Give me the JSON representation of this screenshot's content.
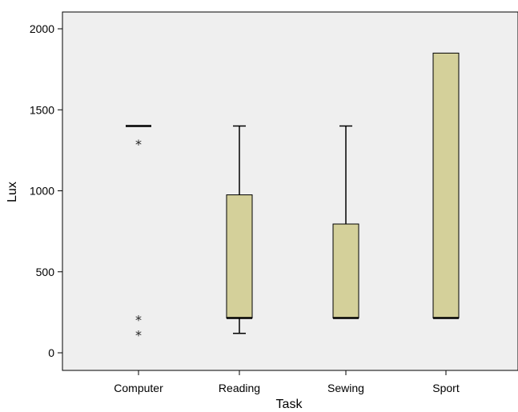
{
  "chart_data": {
    "type": "boxplot",
    "xlabel": "Task",
    "ylabel": "Lux",
    "categories": [
      "Computer",
      "Reading",
      "Sewing",
      "Sport"
    ],
    "ylim": [
      -100,
      2100
    ],
    "yticks": [
      0,
      500,
      1000,
      1500,
      2000
    ],
    "grid": false,
    "box_color": "#d4d09a",
    "plot_background": "#efefef",
    "boxes": [
      {
        "category": "Computer",
        "whisker_low": 1400,
        "q1": 1400,
        "median": 1400,
        "q3": 1400,
        "whisker_high": 1400,
        "outliers": [
          {
            "value": 1300,
            "marker": "*"
          },
          {
            "value": 215,
            "marker": "*"
          },
          {
            "value": 120,
            "marker": "*"
          }
        ]
      },
      {
        "category": "Reading",
        "whisker_low": 120,
        "q1": 215,
        "median": 215,
        "q3": 975,
        "whisker_high": 1400,
        "outliers": []
      },
      {
        "category": "Sewing",
        "whisker_low": 215,
        "q1": 215,
        "median": 215,
        "q3": 795,
        "whisker_high": 1400,
        "outliers": []
      },
      {
        "category": "Sport",
        "whisker_low": 215,
        "q1": 215,
        "median": 215,
        "q3": 1850,
        "whisker_high": 1850,
        "outliers": []
      }
    ]
  }
}
